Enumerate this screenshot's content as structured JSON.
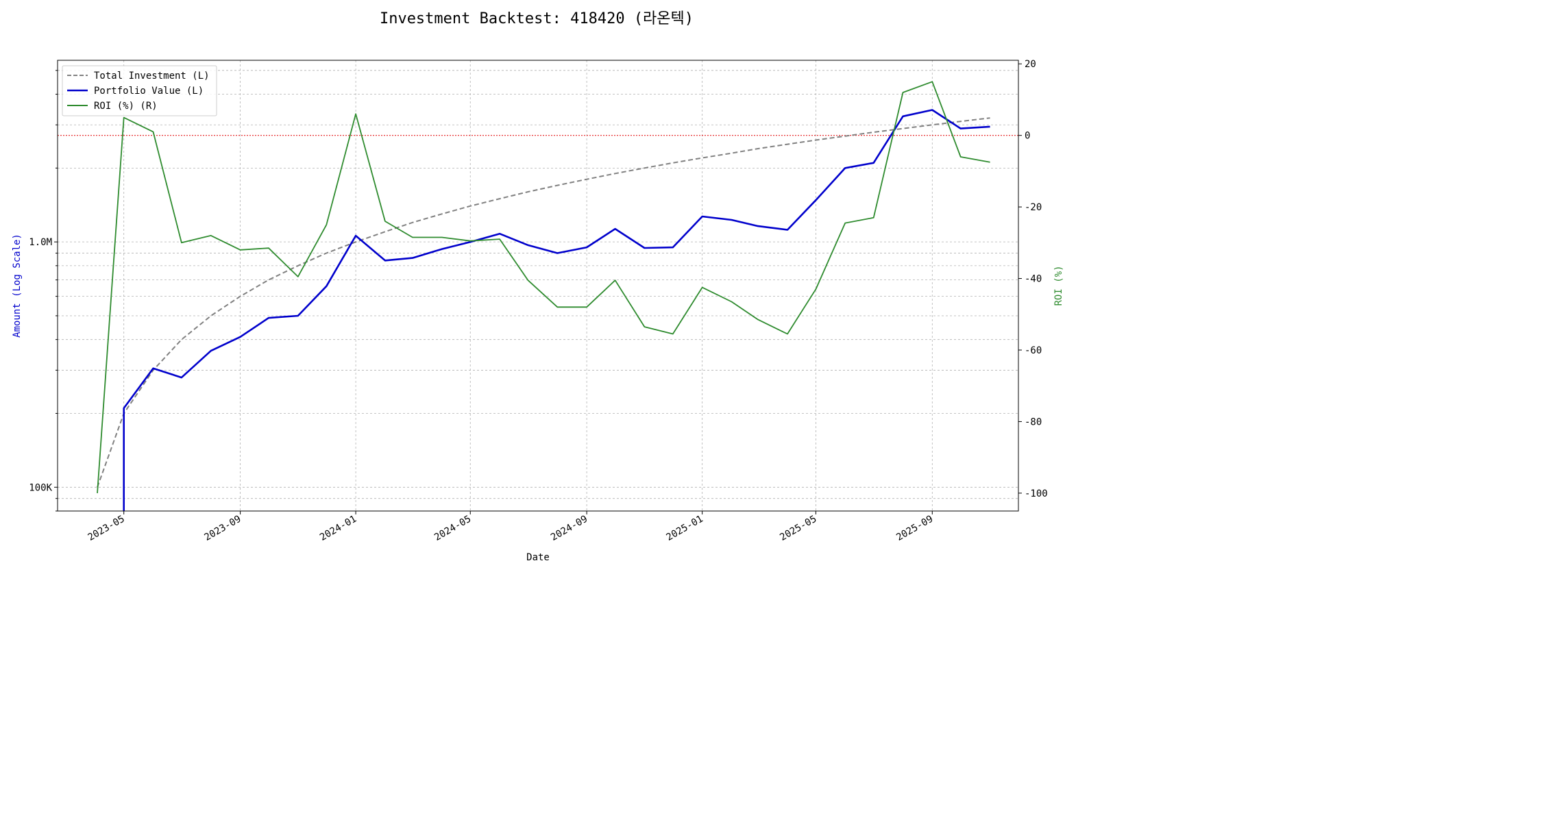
{
  "chart_data": {
    "type": "line",
    "title": "Investment Backtest: 418420 (라온텍)",
    "xlabel": "Date",
    "ylabel_left": "Amount (Log Scale)",
    "ylabel_right": "ROI (%)",
    "x_ticks": [
      "2023-05",
      "2023-09",
      "2024-01",
      "2024-05",
      "2024-09",
      "2025-01",
      "2025-05",
      "2025-09"
    ],
    "y_left_ticks": [
      "100K",
      "1.0M"
    ],
    "y_right_ticks": [
      "20",
      "0",
      "-20",
      "-40",
      "-60",
      "-80",
      "-100"
    ],
    "x_range": [
      "2023-02-20",
      "2025-12-01"
    ],
    "y_left_scale": "log",
    "y_left_range": [
      80000,
      5500000
    ],
    "y_right_range": [
      -105,
      21
    ],
    "reference_line": {
      "axis": "right",
      "y": 0,
      "color": "#e41a1c",
      "style": "dotted"
    },
    "grid": true,
    "legend_position": "top-left",
    "dates": [
      "2023-04-03",
      "2023-05-01",
      "2023-06-01",
      "2023-07-01",
      "2023-08-01",
      "2023-09-01",
      "2023-10-01",
      "2023-11-01",
      "2023-12-01",
      "2024-01-01",
      "2024-02-01",
      "2024-03-01",
      "2024-04-01",
      "2024-05-01",
      "2024-06-01",
      "2024-07-01",
      "2024-08-01",
      "2024-09-01",
      "2024-10-01",
      "2024-11-01",
      "2024-12-01",
      "2025-01-01",
      "2025-02-01",
      "2025-03-01",
      "2025-04-01",
      "2025-05-01",
      "2025-06-01",
      "2025-07-01",
      "2025-08-01",
      "2025-09-01",
      "2025-10-01",
      "2025-11-01"
    ],
    "series": [
      {
        "name": "Total Investment (L)",
        "axis": "left",
        "color": "#808080",
        "style": "dashed",
        "values": [
          100000,
          200000,
          300000,
          400000,
          500000,
          600000,
          700000,
          800000,
          900000,
          1000000,
          1100000,
          1200000,
          1300000,
          1400000,
          1500000,
          1600000,
          1700000,
          1800000,
          1900000,
          2000000,
          2100000,
          2200000,
          2300000,
          2400000,
          2500000,
          2600000,
          2700000,
          2800000,
          2900000,
          3000000,
          3100000,
          3200000
        ]
      },
      {
        "name": "Portfolio Value (L)",
        "axis": "left",
        "color": "#0000cc",
        "style": "solid",
        "values": [
          null,
          210000,
          305000,
          280000,
          360000,
          410000,
          490000,
          500000,
          660000,
          1060000,
          840000,
          860000,
          935000,
          1000000,
          1080000,
          970000,
          900000,
          950000,
          1130000,
          945000,
          950000,
          1270000,
          1230000,
          1160000,
          1120000,
          1480000,
          2000000,
          2100000,
          3250000,
          3450000,
          2900000,
          2950000
        ]
      },
      {
        "name": "ROI (%) (R)",
        "axis": "right",
        "color": "#2e8b2e",
        "style": "solid",
        "values": [
          -100,
          5,
          1,
          -30,
          -28,
          -32,
          -31.5,
          -39.5,
          -25,
          6,
          -24,
          -28.5,
          -28.5,
          -29.5,
          -29,
          -40.5,
          -48,
          -48,
          -40.5,
          -53.5,
          -55.5,
          -42.5,
          -46.5,
          -51.5,
          -55.5,
          -43,
          -24.5,
          -23,
          12,
          15,
          -6,
          -7.5
        ]
      }
    ]
  }
}
